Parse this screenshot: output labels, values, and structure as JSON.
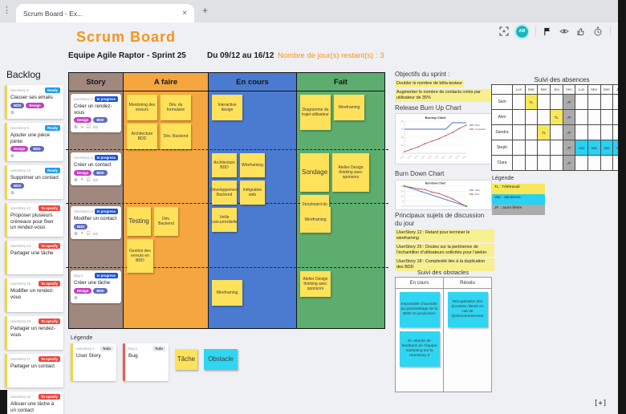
{
  "icons": {
    "menu": "⋮",
    "close": "×",
    "new_tab": "+",
    "circle_plus": "⊕",
    "star": "★",
    "check": "☑",
    "fit": "[+]"
  },
  "browser": {
    "tab_title": "Scrum Board - Ex..."
  },
  "toolbar": {
    "avatar": "AB"
  },
  "header": {
    "title": "Scrum Board",
    "team": "Equipe Agile Raptor - Sprint 25",
    "dates": "Du 09/12 au 16/12",
    "remaining": "Nombre de jour(s) restant(s) : 3"
  },
  "backlog": {
    "title": "Backlog",
    "cards": [
      {
        "id": "UserStory-5",
        "status": "Ready",
        "text": "Classer ses emails",
        "tags": [
          "BDD",
          "Design"
        ]
      },
      {
        "id": "UserStory-6",
        "status": "Ready",
        "text": "Ajouter une pièce jointe",
        "tags": [
          "Design",
          "BDD"
        ]
      },
      {
        "id": "UserStory-12",
        "status": "Ready",
        "text": "Supprimer un contact",
        "tags": [
          "BDD"
        ]
      },
      {
        "id": "UserStory-13",
        "status": "To specify",
        "text": "Proposer plusieurs créneaux pour fixer un rendez-vous"
      },
      {
        "id": "UserStory-14",
        "status": "To specify",
        "text": "Partager une tâche"
      },
      {
        "id": "UserStory-15",
        "status": "To specify",
        "text": "Modifier un rendez-vous"
      },
      {
        "id": "UserStory-16",
        "status": "To specify",
        "text": "Partager un rendez-vous"
      },
      {
        "id": "UserStory-17",
        "status": "To specify",
        "text": "Partager un contact"
      },
      {
        "id": "UserStory-24",
        "status": "To specify",
        "text": "Allouer une tâche à un contact"
      }
    ]
  },
  "board": {
    "columns": [
      "Story",
      "A faire",
      "En cours",
      "Fait"
    ],
    "rows": [
      {
        "story": {
          "id": "UserStory-10",
          "status": "In progress",
          "title": "Créer un rendez-vous",
          "tags": [
            "Design",
            "BDD"
          ],
          "checklist": "0/2"
        },
        "a_faire": [
          "Monitoring des erreurs",
          "Dév. du formulaire",
          "Architecture BDD",
          "Dév. Backend"
        ],
        "en_cours": [
          "Interactive design"
        ],
        "fait": [
          "Diagramme du trajet utilisateur",
          "Wireframing"
        ]
      },
      {
        "story": {
          "id": "UserStory-11",
          "status": "In progress",
          "title": "Créer un contact",
          "tags": [
            "Design",
            "BDD"
          ],
          "checklist": "0/2"
        },
        "a_faire": [],
        "en_cours": [
          "Architecture BDD",
          "Wireframing",
          "Développement Backend",
          "Intégration web",
          "Veille concurrentielle"
        ],
        "fait": [
          "Sondage",
          "Atelier Design thinking avec sponsors",
          "Storyboard du trajet"
        ]
      },
      {
        "story": {
          "id": "UserStory-19",
          "status": "In progress",
          "title": "Modifier un contact",
          "tags": [
            "BDD"
          ],
          "checklist": "0/2"
        },
        "a_faire": [
          "Testing",
          "Dév. Backend",
          "Gestion des erreurs en BDD"
        ],
        "en_cours": [],
        "fait": [
          "Wireframing"
        ]
      },
      {
        "story": {
          "id": "Bug-2",
          "status": "In progress",
          "title": "Créer une tâche",
          "tags": [
            "Design",
            "BDD"
          ]
        },
        "a_faire": [],
        "en_cours": [
          "Wireframing"
        ],
        "fait": [
          "Atelier Design thinking avec sponsors"
        ]
      }
    ]
  },
  "board_legend": {
    "title": "Légende",
    "user_story": {
      "id": "UserStory-x",
      "status": "Todo",
      "label": "User Story"
    },
    "bug": {
      "id": "Bug-x",
      "status": "Todo",
      "label": "Bug"
    },
    "tache": "Tâche",
    "obstacle": "Obstacle"
  },
  "sprint_panel": {
    "objectifs_title": "Objectifs du sprint :",
    "objectifs": [
      "Doubler le nombre de bêta-testeur",
      "Augmenter le nombre de contacts créés par utilisateur de 35%"
    ],
    "burnup_heading": "Release Burn Up Chart",
    "burndown_heading": "Burn Down Chart",
    "discussion_title": "Principaux sujets de discussion du jour",
    "discussion": [
      "UserStory 12 : Retard pour terminer le wireframing",
      "UserStory 25 : Doutes sur la pertinence de l’échantillon d’utilisateurs sollicités pour l’atelier",
      "UserStory 18 : Complexité liée à la duplication des BDD"
    ],
    "obstacles": {
      "title": "Suivi des obstacles",
      "columns": [
        "En cours",
        "Résolu"
      ],
      "en_cours": [
        "Impossible d’accéder au paramétrage de la BDD en production",
        "En attente de feedback de l’équipe marketing sur la UserStory 9"
      ],
      "resolu": [
        "Récupération des données clients en cas de dysfonctionnement"
      ]
    }
  },
  "absences": {
    "title": "Suivi des absences",
    "days": [
      "Lun",
      "Mar",
      "Mer",
      "Jeu",
      "Ven",
      "Lun",
      "Mar",
      "Mer",
      "Jeu"
    ],
    "rows": [
      {
        "name": "Sam",
        "cells": [
          "",
          "TL",
          "",
          "",
          "JF",
          "",
          "",
          "",
          ""
        ]
      },
      {
        "name": "Alex",
        "cells": [
          "",
          "",
          "",
          "TL",
          "JF",
          "",
          "",
          "",
          ""
        ]
      },
      {
        "name": "Sandra",
        "cells": [
          "",
          "",
          "TL",
          "",
          "JF",
          "",
          "",
          "",
          ""
        ]
      },
      {
        "name": "Steph",
        "cells": [
          "",
          "",
          "",
          "",
          "JF",
          "Vac",
          "Vac",
          "Vac",
          "Vac"
        ]
      },
      {
        "name": "Clara",
        "cells": [
          "",
          "",
          "",
          "",
          "JF",
          "",
          "",
          "",
          ""
        ]
      }
    ],
    "legend_title": "Légende",
    "legend": [
      "TL : Télétravail",
      "Vac : Vacances",
      "JF : Jours fériés"
    ]
  },
  "colors": {
    "accent_orange": "#f7941e",
    "col_story": "#a1887f",
    "col_afaire": "#f5a63f",
    "col_encours": "#4a7bd0",
    "col_fait": "#5cad6e",
    "sticky_yellow": "#ffe15a",
    "sticky_cyan": "#2fd6f2",
    "badge_ready": "#1e9bf0",
    "badge_inprogress": "#1a56db",
    "badge_tospecify": "#f1453d",
    "tag_design": "#c13fbf",
    "tag_bdd": "#5c6bc0",
    "highlight": "#f8ef8e",
    "avatar": "#14b8be"
  },
  "chart_data": [
    {
      "type": "line",
      "title": "Burnup Chart",
      "x": [
        "09/12",
        "10/12",
        "11/12",
        "12/12",
        "13/12",
        "14/12",
        "15/12",
        "16/12",
        "17/12",
        "18/12"
      ],
      "series": [
        {
          "name": "Total",
          "color": "#4472c4",
          "values": [
            30,
            30,
            30,
            30,
            30,
            30,
            30,
            38,
            38,
            38
          ]
        },
        {
          "name": "Completed",
          "color": "#c0504d",
          "markers": true,
          "values": [
            2,
            5,
            8,
            12,
            15,
            18,
            22,
            26,
            31,
            35
          ]
        }
      ],
      "ylim": [
        0,
        40
      ],
      "grid": true,
      "legend_position": "right",
      "x_labels_rotated": true
    },
    {
      "type": "line",
      "title": "Burndown Chart",
      "x": [
        "1",
        "2",
        "3",
        "4",
        "5",
        "6",
        "7",
        "8",
        "9",
        "10"
      ],
      "series": [
        {
          "name": "Idéal",
          "color": "#4472c4",
          "values": [
            30,
            26.7,
            23.3,
            20,
            16.7,
            13.3,
            10,
            6.7,
            3.3,
            0
          ]
        },
        {
          "name": "Réel",
          "color": "#c0504d",
          "markers": true,
          "values": [
            30,
            28,
            26,
            25,
            21,
            19,
            15,
            11,
            5,
            0
          ]
        }
      ],
      "ylim": [
        0,
        30
      ],
      "grid": true,
      "legend_position": "right",
      "endpoint_markers": true
    }
  ]
}
